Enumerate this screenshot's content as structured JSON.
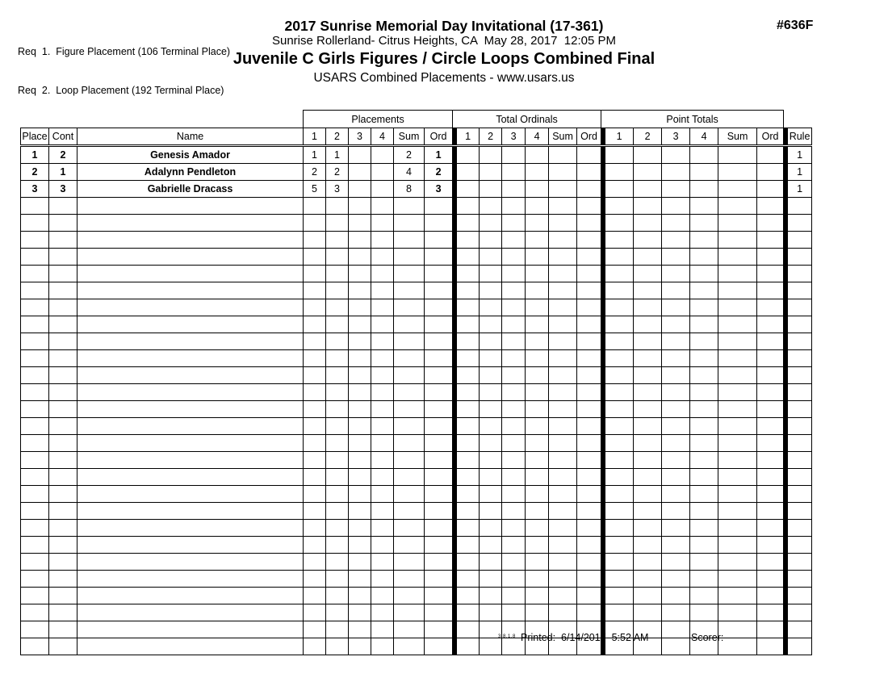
{
  "header": {
    "req_line_1": "Req  1.  Figure Placement (106 Terminal Place)",
    "req_line_2": "Req  2.  Loop Placement (192 Terminal Place)",
    "title": "2017 Sunrise Memorial Day Invitational (17-361)",
    "subtitle": "Sunrise Rollerland- Citrus Heights, CA  May 28, 2017  12:05 PM",
    "event_title": "Juvenile C Girls Figures / Circle Loops Combined Final",
    "method_line": "USARS Combined Placements - www.usars.us",
    "sheet_number": "#636F"
  },
  "table": {
    "group_headers": {
      "placements": "Placements",
      "total_ordinals": "Total Ordinals",
      "point_totals": "Point Totals"
    },
    "column_headers": {
      "place": "Place",
      "cont": "Cont",
      "name": "Name",
      "judges": [
        "1",
        "2",
        "3",
        "4"
      ],
      "sum": "Sum",
      "ord": "Ord",
      "rule": "Rule"
    },
    "rows": [
      {
        "place": "1",
        "cont": "2",
        "name": "Genesis Amador",
        "placements": [
          "1",
          "1",
          "",
          "",
          "2",
          "1"
        ],
        "total_ordinals": [
          "",
          "",
          "",
          "",
          "",
          ""
        ],
        "point_totals": [
          "",
          "",
          "",
          "",
          "",
          ""
        ],
        "rule": "1"
      },
      {
        "place": "2",
        "cont": "1",
        "name": "Adalynn Pendleton",
        "placements": [
          "2",
          "2",
          "",
          "",
          "4",
          "2"
        ],
        "total_ordinals": [
          "",
          "",
          "",
          "",
          "",
          ""
        ],
        "point_totals": [
          "",
          "",
          "",
          "",
          "",
          ""
        ],
        "rule": "1"
      },
      {
        "place": "3",
        "cont": "3",
        "name": "Gabrielle Dracass",
        "placements": [
          "5",
          "3",
          "",
          "",
          "8",
          "3"
        ],
        "total_ordinals": [
          "",
          "",
          "",
          "",
          "",
          ""
        ],
        "point_totals": [
          "",
          "",
          "",
          "",
          "",
          ""
        ],
        "rule": "1"
      }
    ],
    "empty_row_count": 27
  },
  "footer": {
    "version": "3.8.1.8",
    "printed_label": "Printed:",
    "printed_value": "6/14/2017  5:52 AM",
    "scorer_label": "Scorer:"
  },
  "colors": {
    "ink": "#000000",
    "paper": "#ffffff"
  }
}
